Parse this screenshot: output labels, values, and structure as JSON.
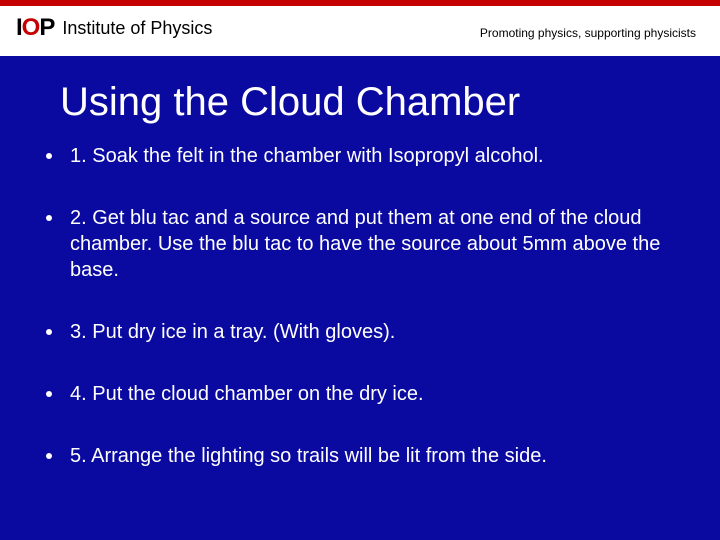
{
  "colors": {
    "background": "#0a0aa0",
    "header_bg": "#ffffff",
    "accent_red": "#c40000",
    "text_white": "#ffffff",
    "text_black": "#000000"
  },
  "header": {
    "logo_mark_html": "IOP",
    "logo_text": "Institute of Physics",
    "tagline": "Promoting physics, supporting physicists"
  },
  "slide": {
    "title": "Using the Cloud Chamber",
    "title_fontsize": 40,
    "bullet_fontsize": 20,
    "bullets": [
      "1. Soak the felt in the chamber with Isopropyl alcohol.",
      "2. Get blu tac and a source and put them at one end of the cloud chamber. Use the blu tac to have the source about 5mm above the base.",
      "3. Put dry ice in a tray. (With gloves).",
      "4. Put the cloud chamber on the dry ice.",
      "5. Arrange the lighting so trails will be lit from the side."
    ]
  }
}
